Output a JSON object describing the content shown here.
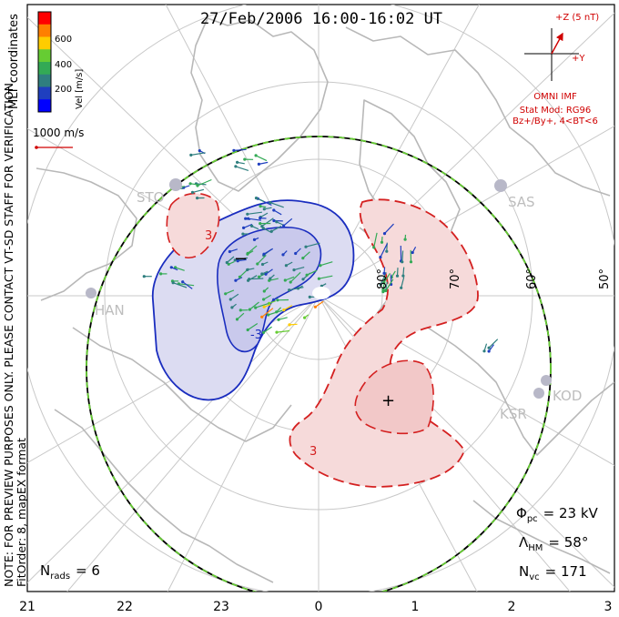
{
  "title": "27/Feb/2006 16:00-16:02 UT",
  "colorbar": {
    "label": "Vel [m/s]",
    "ticks": [
      "600",
      "400",
      "200"
    ],
    "colors": [
      "#ff0000",
      "#ff7f00",
      "#ffcc00",
      "#66cc33",
      "#33aa55",
      "#2f7f7f",
      "#1f3fbf",
      "#0000ff"
    ]
  },
  "coord_label": "MLT coordinates",
  "scale_vector": "1000 m/s",
  "note_line1": "NOTE: FOR PREVIEW PURPOSES ONLY. PLEASE CONTACT VT-SD STAFF FOR VERIFICATION.",
  "note_line2": "FitOrder: 8, mapEX format",
  "imf": {
    "z_label": "+Z (5 nT)",
    "y_label": "+Y",
    "source": "OMNI IMF",
    "stat_mod": "Stat Mod: RG96",
    "condition": "Bz+/By+, 4<BT<6"
  },
  "stations": [
    "STO",
    "SAS",
    "HAN",
    "KOD",
    "KSR"
  ],
  "latitude_labels": [
    "80°",
    "70°",
    "60°",
    "50°"
  ],
  "contour_marks": {
    "minus": "−",
    "plus": "+",
    "neg_value": "-3",
    "pos_value": "3"
  },
  "stats": {
    "phi_symbol": "Φ",
    "phi_sub": "pc",
    "phi_value": "= 23 kV",
    "lambda_symbol": "Λ",
    "lambda_sub": "HM",
    "lambda_value": "= 58°",
    "nvc_symbol": "N",
    "nvc_sub": "vc",
    "nvc_value": "= 171",
    "nrads_symbol": "N",
    "nrads_sub": "rads",
    "nrads_value": "= 6"
  },
  "mlt_ticks": [
    "21",
    "22",
    "23",
    "0",
    "1",
    "2",
    "3"
  ],
  "colors": {
    "frame": "#000000",
    "land": "#b8b8b8",
    "grid": "#c8c8c8",
    "negative_fill": "#dcdcf2",
    "negative_line": "#1a2dbf",
    "positive_fill": "#f6dada",
    "positive_line": "#d42020",
    "imf_red": "#d00000",
    "boundary_green": "#66cc33"
  }
}
